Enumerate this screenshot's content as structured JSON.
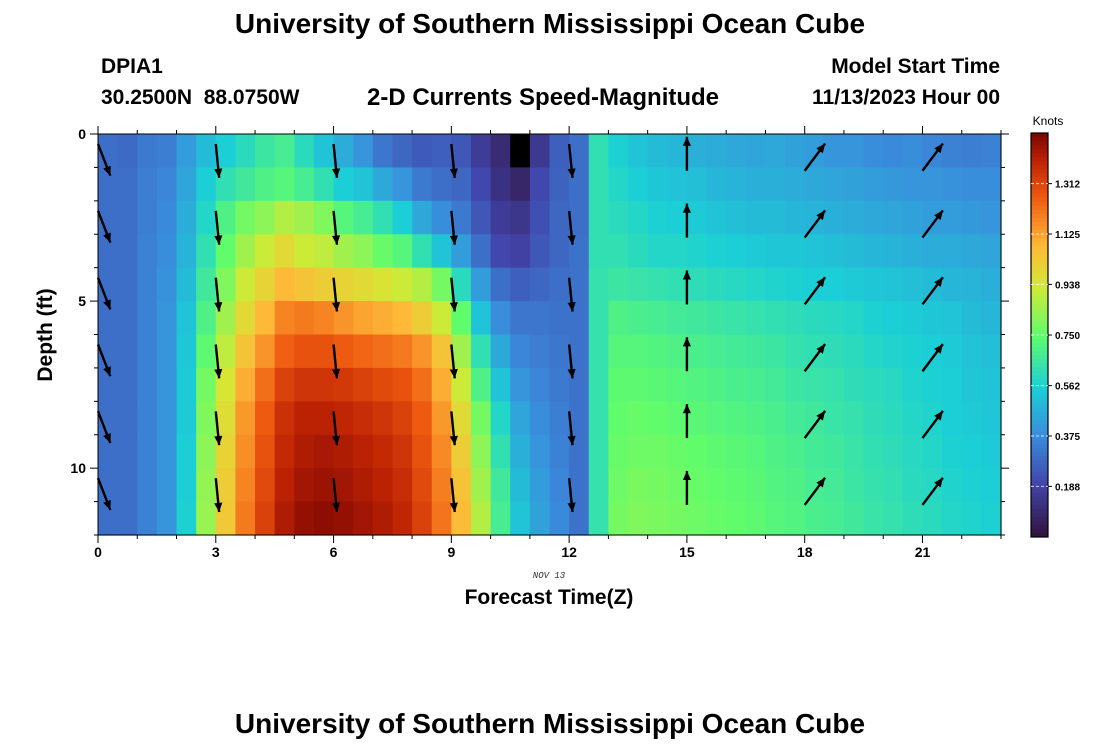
{
  "page": {
    "title": "University of Southern Mississippi Ocean Cube",
    "station_id": "DPIA1",
    "station_coords": "30.2500N  88.0750W",
    "plot_title": "2-D Currents Speed-Magnitude",
    "model_start_label": "Model Start Time",
    "model_start_value": "11/13/2023 Hour 00",
    "footer_title": "University of Southern Mississippi Ocean Cube"
  },
  "chart_data": {
    "type": "heatmap",
    "xlabel": "Forecast Time(Z)",
    "ylabel": "Depth (ft)",
    "date_label": "NOV 13",
    "xlim": [
      0,
      23
    ],
    "ylim": [
      0,
      12
    ],
    "x_ticks": [
      0,
      3,
      6,
      9,
      12,
      15,
      18,
      21
    ],
    "y_ticks": [
      0,
      5,
      10
    ],
    "colorbar": {
      "title": "Knots",
      "ticks": [
        "1.312",
        "1.125",
        "0.938",
        "0.750",
        "0.562",
        "0.375",
        "0.188"
      ],
      "tick_values": [
        1.312,
        1.125,
        0.938,
        0.75,
        0.562,
        0.375,
        0.188
      ],
      "range": [
        0,
        1.5
      ]
    },
    "z_speed_knots": [
      [
        0.3,
        0.29,
        0.33,
        0.34,
        0.42,
        0.5,
        0.55,
        0.6,
        0.65,
        0.68,
        0.6,
        0.52,
        0.46,
        0.4,
        0.32,
        0.28,
        0.25,
        0.26,
        0.24,
        0.16,
        0.1,
        0.0,
        0.15,
        0.26,
        0.3,
        0.62,
        0.56,
        0.52,
        0.5,
        0.49,
        0.47,
        0.46,
        0.45,
        0.44,
        0.45,
        0.43,
        0.42,
        0.4,
        0.4,
        0.38,
        0.37,
        0.38,
        0.36,
        0.35,
        0.34,
        0.35
      ],
      [
        0.3,
        0.3,
        0.34,
        0.36,
        0.44,
        0.55,
        0.62,
        0.66,
        0.7,
        0.72,
        0.68,
        0.62,
        0.55,
        0.52,
        0.45,
        0.4,
        0.33,
        0.3,
        0.28,
        0.2,
        0.12,
        0.08,
        0.2,
        0.27,
        0.3,
        0.62,
        0.58,
        0.55,
        0.53,
        0.52,
        0.51,
        0.49,
        0.48,
        0.47,
        0.47,
        0.46,
        0.45,
        0.44,
        0.43,
        0.42,
        0.41,
        0.4,
        0.4,
        0.39,
        0.38,
        0.38
      ],
      [
        0.3,
        0.3,
        0.34,
        0.37,
        0.46,
        0.58,
        0.7,
        0.78,
        0.82,
        0.88,
        0.85,
        0.8,
        0.72,
        0.68,
        0.62,
        0.55,
        0.45,
        0.38,
        0.33,
        0.24,
        0.16,
        0.14,
        0.22,
        0.28,
        0.3,
        0.62,
        0.6,
        0.58,
        0.56,
        0.55,
        0.54,
        0.52,
        0.51,
        0.5,
        0.5,
        0.49,
        0.48,
        0.47,
        0.46,
        0.45,
        0.44,
        0.43,
        0.42,
        0.42,
        0.41,
        0.4
      ],
      [
        0.3,
        0.3,
        0.35,
        0.38,
        0.48,
        0.62,
        0.75,
        0.85,
        0.92,
        0.98,
        0.92,
        0.9,
        0.85,
        0.82,
        0.76,
        0.72,
        0.62,
        0.52,
        0.42,
        0.3,
        0.2,
        0.18,
        0.24,
        0.28,
        0.31,
        0.62,
        0.62,
        0.6,
        0.58,
        0.58,
        0.57,
        0.56,
        0.55,
        0.54,
        0.53,
        0.53,
        0.52,
        0.51,
        0.5,
        0.49,
        0.48,
        0.47,
        0.46,
        0.46,
        0.45,
        0.44
      ],
      [
        0.3,
        0.3,
        0.35,
        0.39,
        0.5,
        0.66,
        0.8,
        0.92,
        1.0,
        1.08,
        1.05,
        1.02,
        1.0,
        0.98,
        0.95,
        0.92,
        0.88,
        0.78,
        0.6,
        0.42,
        0.3,
        0.26,
        0.28,
        0.3,
        0.31,
        0.63,
        0.65,
        0.64,
        0.63,
        0.62,
        0.61,
        0.6,
        0.59,
        0.58,
        0.57,
        0.56,
        0.55,
        0.55,
        0.54,
        0.53,
        0.52,
        0.51,
        0.5,
        0.49,
        0.48,
        0.47
      ],
      [
        0.3,
        0.3,
        0.35,
        0.4,
        0.52,
        0.7,
        0.85,
        0.98,
        1.08,
        1.18,
        1.2,
        1.18,
        1.15,
        1.12,
        1.1,
        1.08,
        1.02,
        0.92,
        0.75,
        0.52,
        0.38,
        0.32,
        0.32,
        0.31,
        0.31,
        0.63,
        0.7,
        0.69,
        0.68,
        0.67,
        0.66,
        0.65,
        0.64,
        0.63,
        0.62,
        0.61,
        0.6,
        0.59,
        0.58,
        0.56,
        0.55,
        0.54,
        0.53,
        0.52,
        0.5,
        0.49
      ],
      [
        0.3,
        0.3,
        0.35,
        0.4,
        0.53,
        0.74,
        0.9,
        1.05,
        1.15,
        1.25,
        1.28,
        1.28,
        1.26,
        1.24,
        1.22,
        1.2,
        1.15,
        1.05,
        0.85,
        0.62,
        0.45,
        0.36,
        0.34,
        0.32,
        0.31,
        0.63,
        0.72,
        0.72,
        0.71,
        0.7,
        0.69,
        0.68,
        0.67,
        0.66,
        0.65,
        0.63,
        0.62,
        0.61,
        0.6,
        0.58,
        0.57,
        0.56,
        0.55,
        0.54,
        0.52,
        0.51
      ],
      [
        0.3,
        0.3,
        0.35,
        0.4,
        0.54,
        0.78,
        0.94,
        1.1,
        1.22,
        1.32,
        1.35,
        1.35,
        1.34,
        1.32,
        1.3,
        1.28,
        1.22,
        1.1,
        0.92,
        0.7,
        0.52,
        0.4,
        0.36,
        0.33,
        0.31,
        0.63,
        0.74,
        0.74,
        0.73,
        0.72,
        0.71,
        0.7,
        0.69,
        0.68,
        0.67,
        0.65,
        0.64,
        0.63,
        0.61,
        0.6,
        0.59,
        0.57,
        0.56,
        0.55,
        0.53,
        0.52
      ],
      [
        0.3,
        0.3,
        0.35,
        0.4,
        0.54,
        0.8,
        0.97,
        1.14,
        1.26,
        1.36,
        1.4,
        1.4,
        1.39,
        1.37,
        1.35,
        1.32,
        1.26,
        1.14,
        0.98,
        0.78,
        0.58,
        0.44,
        0.38,
        0.34,
        0.31,
        0.63,
        0.75,
        0.76,
        0.75,
        0.74,
        0.73,
        0.72,
        0.71,
        0.7,
        0.69,
        0.67,
        0.66,
        0.64,
        0.63,
        0.61,
        0.6,
        0.58,
        0.57,
        0.55,
        0.54,
        0.53
      ],
      [
        0.3,
        0.3,
        0.35,
        0.4,
        0.55,
        0.82,
        1.0,
        1.16,
        1.28,
        1.38,
        1.42,
        1.43,
        1.42,
        1.4,
        1.38,
        1.35,
        1.28,
        1.17,
        1.02,
        0.82,
        0.62,
        0.47,
        0.4,
        0.35,
        0.31,
        0.63,
        0.76,
        0.77,
        0.77,
        0.76,
        0.75,
        0.74,
        0.73,
        0.72,
        0.7,
        0.69,
        0.67,
        0.66,
        0.64,
        0.62,
        0.61,
        0.59,
        0.58,
        0.56,
        0.55,
        0.54
      ],
      [
        0.3,
        0.3,
        0.35,
        0.4,
        0.55,
        0.83,
        1.02,
        1.18,
        1.3,
        1.4,
        1.44,
        1.45,
        1.44,
        1.42,
        1.4,
        1.37,
        1.3,
        1.19,
        1.05,
        0.85,
        0.66,
        0.5,
        0.42,
        0.36,
        0.31,
        0.63,
        0.77,
        0.79,
        0.78,
        0.77,
        0.76,
        0.75,
        0.74,
        0.73,
        0.71,
        0.7,
        0.68,
        0.67,
        0.65,
        0.63,
        0.62,
        0.6,
        0.59,
        0.57,
        0.56,
        0.55
      ],
      [
        0.3,
        0.3,
        0.35,
        0.4,
        0.56,
        0.84,
        1.03,
        1.2,
        1.32,
        1.42,
        1.46,
        1.47,
        1.46,
        1.44,
        1.42,
        1.39,
        1.32,
        1.21,
        1.07,
        0.88,
        0.68,
        0.52,
        0.43,
        0.37,
        0.31,
        0.63,
        0.78,
        0.8,
        0.79,
        0.78,
        0.77,
        0.76,
        0.75,
        0.74,
        0.72,
        0.71,
        0.69,
        0.68,
        0.66,
        0.64,
        0.63,
        0.61,
        0.6,
        0.58,
        0.57,
        0.56
      ]
    ],
    "vectors": [
      {
        "x": 0,
        "y": 0.3,
        "u": 0.35,
        "v": -0.9
      },
      {
        "x": 0,
        "y": 2.3,
        "u": 0.35,
        "v": -0.9
      },
      {
        "x": 0,
        "y": 4.3,
        "u": 0.35,
        "v": -0.9
      },
      {
        "x": 0,
        "y": 6.3,
        "u": 0.35,
        "v": -0.9
      },
      {
        "x": 0,
        "y": 8.3,
        "u": 0.35,
        "v": -0.9
      },
      {
        "x": 0,
        "y": 10.3,
        "u": 0.35,
        "v": -0.9
      },
      {
        "x": 3,
        "y": 0.3,
        "u": 0.1,
        "v": -1
      },
      {
        "x": 3,
        "y": 2.3,
        "u": 0.1,
        "v": -1
      },
      {
        "x": 3,
        "y": 4.3,
        "u": 0.1,
        "v": -1
      },
      {
        "x": 3,
        "y": 6.3,
        "u": 0.1,
        "v": -1
      },
      {
        "x": 3,
        "y": 8.3,
        "u": 0.1,
        "v": -1
      },
      {
        "x": 3,
        "y": 10.3,
        "u": 0.1,
        "v": -1
      },
      {
        "x": 6,
        "y": 0.3,
        "u": 0.1,
        "v": -1
      },
      {
        "x": 6,
        "y": 2.3,
        "u": 0.1,
        "v": -1
      },
      {
        "x": 6,
        "y": 4.3,
        "u": 0.1,
        "v": -1
      },
      {
        "x": 6,
        "y": 6.3,
        "u": 0.1,
        "v": -1
      },
      {
        "x": 6,
        "y": 8.3,
        "u": 0.1,
        "v": -1
      },
      {
        "x": 6,
        "y": 10.3,
        "u": 0.1,
        "v": -1
      },
      {
        "x": 9,
        "y": 0.3,
        "u": 0.1,
        "v": -1
      },
      {
        "x": 9,
        "y": 2.3,
        "u": 0.1,
        "v": -1
      },
      {
        "x": 9,
        "y": 4.3,
        "u": 0.1,
        "v": -1
      },
      {
        "x": 9,
        "y": 6.3,
        "u": 0.1,
        "v": -1
      },
      {
        "x": 9,
        "y": 8.3,
        "u": 0.1,
        "v": -1
      },
      {
        "x": 9,
        "y": 10.3,
        "u": 0.1,
        "v": -1
      },
      {
        "x": 12,
        "y": 0.3,
        "u": 0.1,
        "v": -1
      },
      {
        "x": 12,
        "y": 2.3,
        "u": 0.1,
        "v": -1
      },
      {
        "x": 12,
        "y": 4.3,
        "u": 0.1,
        "v": -1
      },
      {
        "x": 12,
        "y": 6.3,
        "u": 0.1,
        "v": -1
      },
      {
        "x": 12,
        "y": 8.3,
        "u": 0.1,
        "v": -1
      },
      {
        "x": 12,
        "y": 10.3,
        "u": 0.1,
        "v": -1
      },
      {
        "x": 15,
        "y": 1.1,
        "u": 0,
        "v": 1
      },
      {
        "x": 15,
        "y": 3.1,
        "u": 0,
        "v": 1
      },
      {
        "x": 15,
        "y": 5.1,
        "u": 0,
        "v": 1
      },
      {
        "x": 15,
        "y": 7.1,
        "u": 0,
        "v": 1
      },
      {
        "x": 15,
        "y": 9.1,
        "u": 0,
        "v": 1
      },
      {
        "x": 15,
        "y": 11.1,
        "u": 0,
        "v": 1
      },
      {
        "x": 18,
        "y": 1.1,
        "u": 0.6,
        "v": 0.8
      },
      {
        "x": 18,
        "y": 3.1,
        "u": 0.6,
        "v": 0.8
      },
      {
        "x": 18,
        "y": 5.1,
        "u": 0.6,
        "v": 0.8
      },
      {
        "x": 18,
        "y": 7.1,
        "u": 0.6,
        "v": 0.8
      },
      {
        "x": 18,
        "y": 9.1,
        "u": 0.6,
        "v": 0.8
      },
      {
        "x": 18,
        "y": 11.1,
        "u": 0.6,
        "v": 0.8
      },
      {
        "x": 21,
        "y": 1.1,
        "u": 0.6,
        "v": 0.8
      },
      {
        "x": 21,
        "y": 3.1,
        "u": 0.6,
        "v": 0.8
      },
      {
        "x": 21,
        "y": 5.1,
        "u": 0.6,
        "v": 0.8
      },
      {
        "x": 21,
        "y": 7.1,
        "u": 0.6,
        "v": 0.8
      },
      {
        "x": 21,
        "y": 9.1,
        "u": 0.6,
        "v": 0.8
      },
      {
        "x": 21,
        "y": 11.1,
        "u": 0.6,
        "v": 0.8
      }
    ]
  }
}
